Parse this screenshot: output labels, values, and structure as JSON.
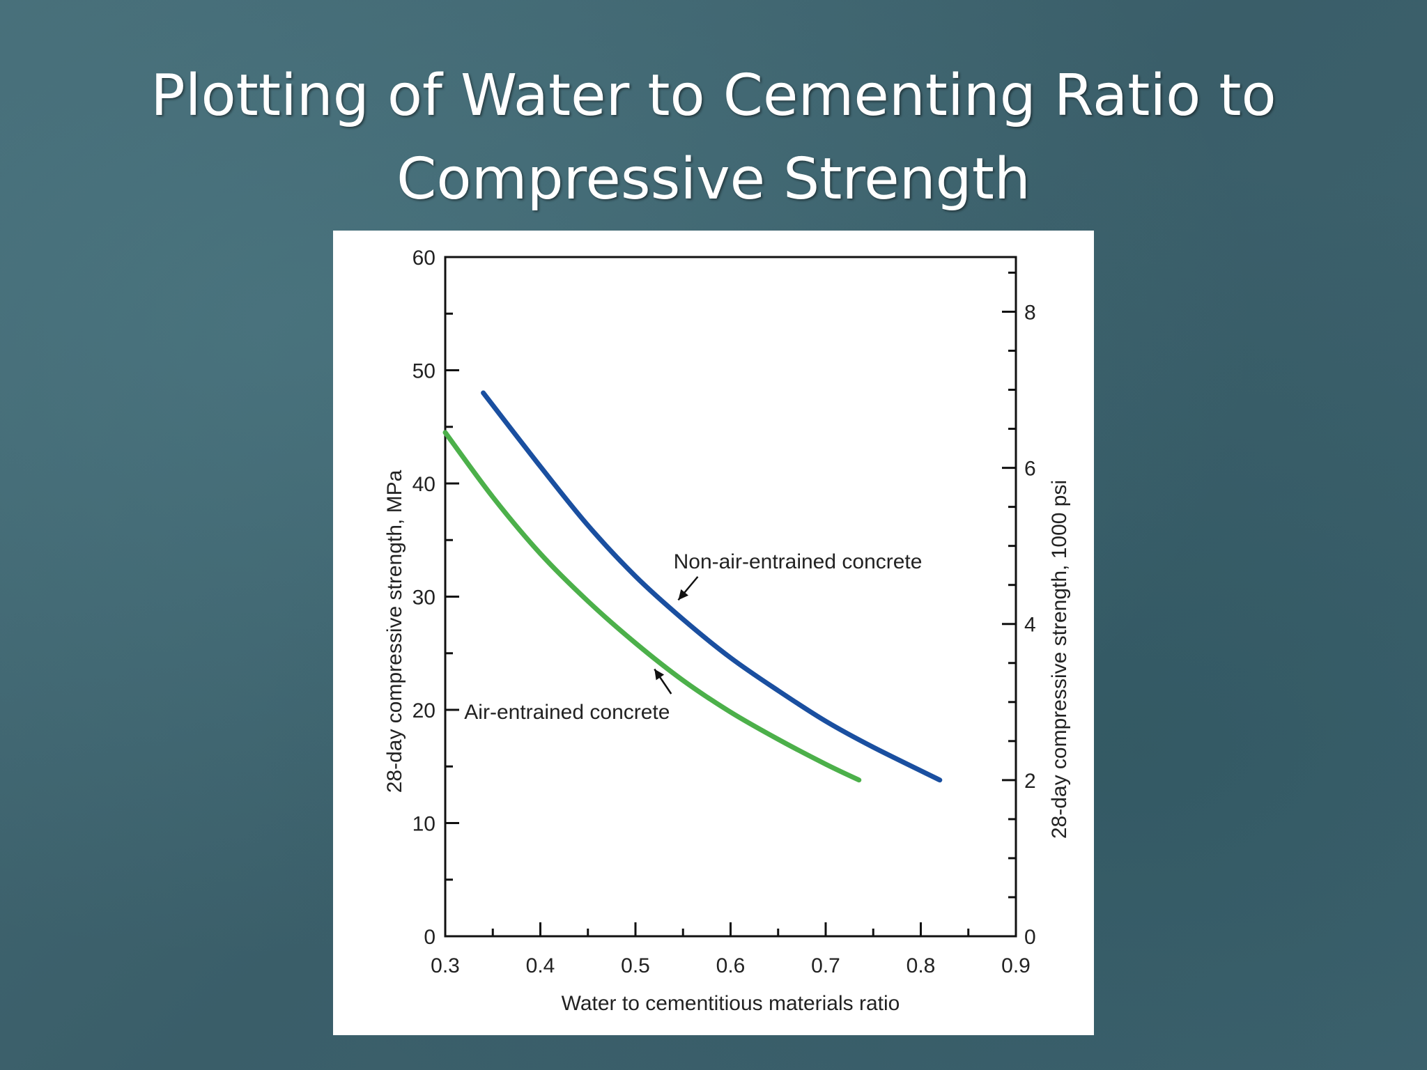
{
  "slide": {
    "title_line1": "Plotting of Water to Cementing Ratio to",
    "title_line2": "Compressive Strength"
  },
  "chart_data": {
    "type": "line",
    "xlabel": "Water to cementitious materials ratio",
    "ylabel": "28-day compressive strength, MPa",
    "y2label": "28-day compressive strength, 1000 psi",
    "xlim": [
      0.3,
      0.9
    ],
    "ylim": [
      0,
      60
    ],
    "y2lim": [
      0,
      8.7
    ],
    "x_ticks": [
      "0.3",
      "0.4",
      "0.5",
      "0.6",
      "0.7",
      "0.8",
      "0.9"
    ],
    "y_ticks": [
      "0",
      "10",
      "20",
      "30",
      "40",
      "50",
      "60"
    ],
    "y2_ticks": [
      "0",
      "2",
      "4",
      "6",
      "8"
    ],
    "grid": false,
    "series": [
      {
        "name": "Non-air-entrained concrete",
        "color": "#1a4fa0",
        "x": [
          0.34,
          0.4,
          0.45,
          0.5,
          0.55,
          0.6,
          0.65,
          0.7,
          0.75,
          0.82
        ],
        "y": [
          48,
          41.5,
          36.3,
          31.8,
          28.0,
          24.6,
          21.7,
          19.0,
          16.7,
          13.8
        ]
      },
      {
        "name": "Air-entrained concrete",
        "color": "#4cb04a",
        "x": [
          0.3,
          0.35,
          0.4,
          0.45,
          0.5,
          0.55,
          0.6,
          0.65,
          0.7,
          0.735
        ],
        "y": [
          44.5,
          38.8,
          33.8,
          29.6,
          25.9,
          22.6,
          19.8,
          17.4,
          15.2,
          13.8
        ]
      }
    ],
    "annotations": [
      {
        "text": "Non-air-entrained concrete",
        "x": 0.54,
        "y": 32.5,
        "arrow_to": [
          0.545,
          29.7
        ]
      },
      {
        "text": "Air-entrained concrete",
        "x": 0.32,
        "y": 19.2,
        "arrow_to": [
          0.52,
          23.6
        ]
      }
    ]
  }
}
